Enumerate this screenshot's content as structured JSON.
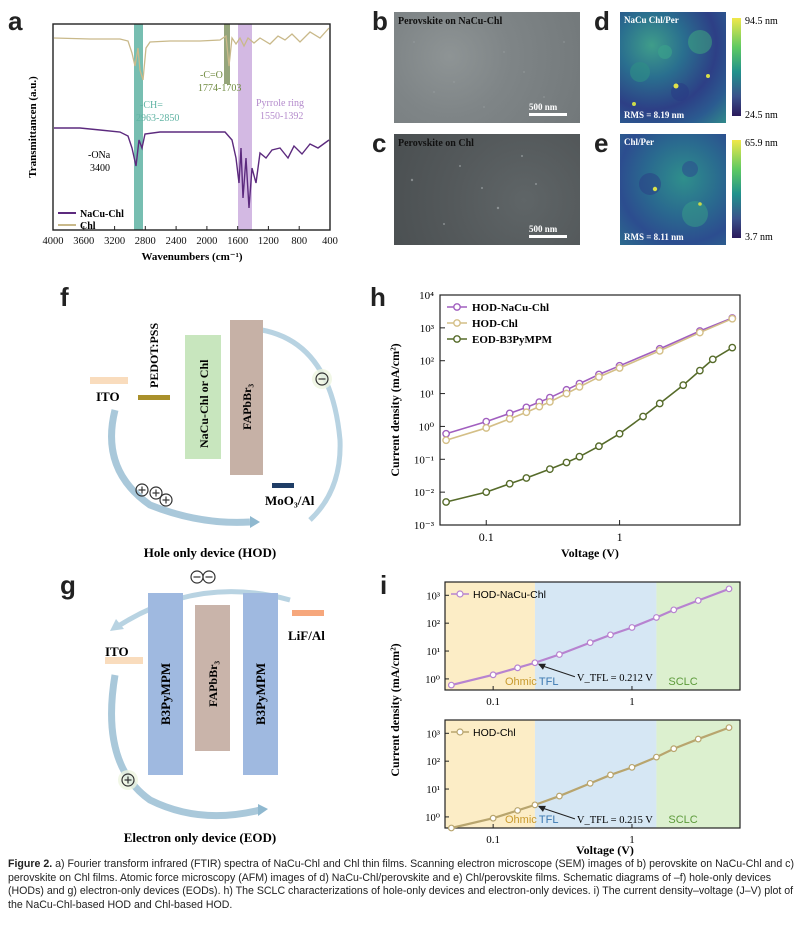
{
  "panels": {
    "a": "a",
    "b": "b",
    "c": "c",
    "d": "d",
    "e": "e",
    "f": "f",
    "g": "g",
    "h": "h",
    "i": "i"
  },
  "ftir": {
    "ylabel": "Transmittancen (a.u.)",
    "xlabel": "Wavenumbers (cm⁻¹)",
    "ticks": [
      "4000",
      "3600",
      "3200",
      "2800",
      "2400",
      "2000",
      "1600",
      "1200",
      "800",
      "400"
    ],
    "legend": [
      "NaCu-Chl",
      "Chl"
    ],
    "ann_ona": "-ONa",
    "ann_ona_val": "3400",
    "ann_ch": "-CH=",
    "ann_ch_val": "2963-2850",
    "ann_co": "-C=O",
    "ann_co_val": "1774-1703",
    "ann_pyr": "Pyrrole ring",
    "ann_pyr_val": "1550-1392",
    "colors": {
      "nacu": "#5c2a7e",
      "chl": "#c9b98a",
      "teal": "#5fb3a3",
      "purple": "#c8a7dc",
      "green": "#7a8f5a"
    }
  },
  "sem": {
    "b_label": "Perovskite on NaCu-Chl",
    "c_label": "Perovskite on Chl",
    "scale": "500 nm"
  },
  "afm": {
    "d_label": "NaCu Chl/Per",
    "d_rms": "RMS = 8.19 nm",
    "d_max": "94.5 nm",
    "d_min": "24.5 nm",
    "e_label": "Chl/Per",
    "e_rms": "RMS = 8.11 nm",
    "e_max": "65.9 nm",
    "e_min": "3.7 nm"
  },
  "hod": {
    "ito": "ITO",
    "pedot": "PEDOT:PSS",
    "htl": "NaCu-Chl or Chl",
    "perov": "FAPbBr₃",
    "moo": "MoO₃/Al",
    "title": "Hole only device (HOD)"
  },
  "eod": {
    "ito": "ITO",
    "b3a": "B3PyMPM",
    "perov": "FAPbBr₃",
    "b3b": "B3PyMPM",
    "lif": "LiF/Al",
    "title": "Electron only device (EOD)"
  },
  "chart_data": [
    {
      "type": "scatter",
      "xlabel": "Voltage (V)",
      "ylabel": "Current density (mA/cm²)",
      "xscale": "log",
      "yscale": "log",
      "xlim": [
        0.045,
        8
      ],
      "ylim": [
        0.001,
        10000
      ],
      "xticks": [
        "0.1",
        "1"
      ],
      "yticks": [
        "10⁻³",
        "10⁻²",
        "10⁻¹",
        "10⁰",
        "10¹",
        "10²",
        "10³",
        "10⁴"
      ],
      "legend_position": "top-left",
      "series": [
        {
          "name": "HOD-NaCu-Chl",
          "color": "#a15fbf",
          "x": [
            0.05,
            0.1,
            0.15,
            0.2,
            0.25,
            0.3,
            0.4,
            0.5,
            0.7,
            1,
            2,
            4,
            7
          ],
          "y": [
            0.6,
            1.4,
            2.5,
            3.8,
            5.5,
            7.5,
            13,
            20,
            38,
            70,
            230,
            800,
            2000
          ]
        },
        {
          "name": "HOD-Chl",
          "color": "#d4bf87",
          "x": [
            0.05,
            0.1,
            0.15,
            0.2,
            0.25,
            0.3,
            0.4,
            0.5,
            0.7,
            1,
            2,
            4,
            7
          ],
          "y": [
            0.38,
            0.9,
            1.7,
            2.7,
            4,
            5.6,
            10,
            16,
            32,
            60,
            200,
            720,
            1900
          ]
        },
        {
          "name": "EOD-B3PyMPM",
          "color": "#566b2a",
          "x": [
            0.05,
            0.1,
            0.15,
            0.2,
            0.3,
            0.4,
            0.5,
            0.7,
            1,
            1.5,
            2,
            3,
            4,
            5,
            7
          ],
          "y": [
            0.005,
            0.01,
            0.018,
            0.027,
            0.05,
            0.08,
            0.12,
            0.25,
            0.6,
            2,
            5,
            18,
            50,
            110,
            250
          ]
        }
      ]
    },
    {
      "type": "scatter",
      "xlabel": "",
      "ylabel": "",
      "xscale": "log",
      "yscale": "log",
      "xlim": [
        0.045,
        6
      ],
      "ylim": [
        0.4,
        3000
      ],
      "legend_position": "top-left",
      "regions": [
        "Ohmic",
        "TFL",
        "SCLC"
      ],
      "annotation": "V_TFL = 0.212 V",
      "series": [
        {
          "name": "HOD-NaCu-Chl",
          "color": "#b783d0",
          "x": [
            0.05,
            0.1,
            0.15,
            0.2,
            0.3,
            0.5,
            0.7,
            1,
            1.5,
            2,
            3,
            5
          ],
          "y": [
            0.6,
            1.4,
            2.5,
            3.8,
            7.5,
            20,
            38,
            70,
            160,
            300,
            650,
            1700
          ]
        }
      ]
    },
    {
      "type": "scatter",
      "xlabel": "Voltage (V)",
      "ylabel": "Current density (mA/cm²)",
      "xscale": "log",
      "yscale": "log",
      "xlim": [
        0.045,
        6
      ],
      "ylim": [
        0.4,
        3000
      ],
      "xticks": [
        "0.1",
        "1"
      ],
      "legend_position": "top-left",
      "regions": [
        "Ohmic",
        "TFL",
        "SCLC"
      ],
      "annotation": "V_TFL = 0.215 V",
      "series": [
        {
          "name": "HOD-Chl",
          "color": "#b8a56e",
          "x": [
            0.05,
            0.1,
            0.15,
            0.2,
            0.3,
            0.5,
            0.7,
            1,
            1.5,
            2,
            3,
            5
          ],
          "y": [
            0.4,
            0.9,
            1.7,
            2.7,
            5.6,
            16,
            32,
            60,
            140,
            280,
            620,
            1600
          ]
        }
      ]
    }
  ],
  "caption": {
    "fig": "Figure 2.",
    "text": " a) Fourier transform infrared (FTIR) spectra of NaCu-Chl and Chl thin films. Scanning electron microscope (SEM) images of b) perovskite on NaCu-Chl and c) perovskite on Chl films. Atomic force microscopy (AFM) images of d) NaCu-Chl/perovskite and e) Chl/perovskite films. Schematic diagrams of –f) hole-only devices (HODs) and g) electron-only devices (EODs). h) The SCLC characterizations of hole-only devices and electron-only devices. i) The current density–voltage (J–V) plot of the NaCu-Chl-based HOD and Chl-based HOD."
  }
}
